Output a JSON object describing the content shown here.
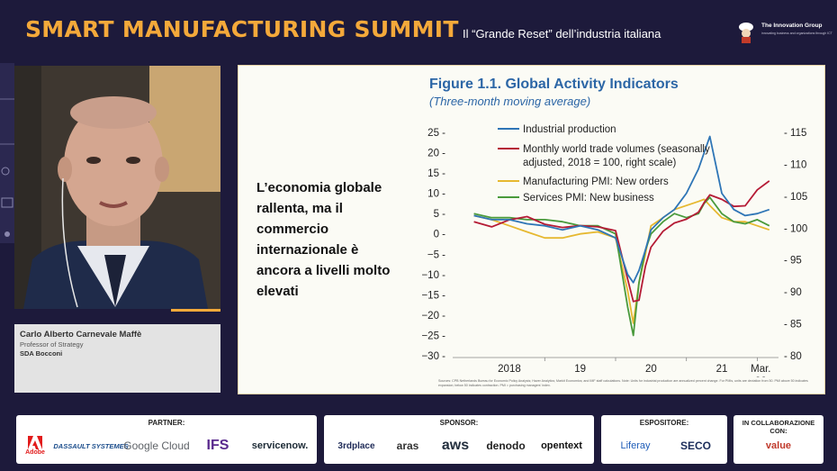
{
  "header": {
    "title": "SMART MANUFACTURING SUMMIT",
    "subtitle": "Il “Grande Reset” dell’industria italiana",
    "org_name": "The Innovation Group",
    "org_tagline": "innovating business and organizations through ICT"
  },
  "speaker": {
    "name": "Carlo Alberto Carnevale Maffè",
    "role": "Professor of Strategy",
    "org": "SDA Bocconi"
  },
  "slide": {
    "text": "L’economia globale rallenta, ma il commercio internazionale è ancora a livelli molto elevati",
    "figure_title": "Figure 1.1.  Global Activity Indicators",
    "figure_subtitle": "(Three-month moving average)",
    "source_note": "Sources: CPB Netherlands Bureau for Economic Policy Analysis; Haver Analytics; Markit Economics; and IMF staff calculations. Note: Units for industrial production are annualized percent change. For PMIs, units are deviation from 50. PMI above 50 indicates expansion; below 50 indicates contraction. PMI = purchasing managers' index."
  },
  "chart_data": {
    "type": "line",
    "title": "Figure 1.1.  Global Activity Indicators",
    "subtitle": "(Three-month moving average)",
    "xlabel": "",
    "ylabel": "",
    "x_ticks": [
      "2018",
      "19",
      "20",
      "21",
      "Mar. 22"
    ],
    "x": [
      2018.0,
      2018.25,
      2018.5,
      2018.75,
      2019.0,
      2019.25,
      2019.5,
      2019.75,
      2020.0,
      2020.17,
      2020.25,
      2020.33,
      2020.42,
      2020.5,
      2020.67,
      2020.83,
      2021.0,
      2021.17,
      2021.25,
      2021.33,
      2021.5,
      2021.67,
      2021.83,
      2022.0,
      2022.17
    ],
    "xlim": [
      2017.7,
      2022.3
    ],
    "y_left_ticks": [
      "25",
      "20",
      "15",
      "10",
      "5",
      "0",
      "−5",
      "−10",
      "−15",
      "−20",
      "−25",
      "−30"
    ],
    "ylim_left": [
      -30,
      25
    ],
    "y_right_ticks": [
      "115",
      "110",
      "105",
      "100",
      "95",
      "90",
      "85",
      "80"
    ],
    "ylim_right": [
      80,
      115
    ],
    "grid": false,
    "legend_position": "top",
    "colors": {
      "industrial": "#2e75b6",
      "trade": "#b51b35",
      "manufacturing": "#e6b830",
      "services": "#4a9a3c"
    },
    "series": [
      {
        "name": "Industrial production",
        "axis": "left",
        "values": [
          4.5,
          3.5,
          3.5,
          2.5,
          2,
          1,
          2,
          1,
          -1,
          -10,
          -12,
          -9,
          -4,
          1,
          4,
          6,
          10,
          16,
          20,
          24,
          10,
          6,
          4.5,
          5,
          6
        ]
      },
      {
        "name": "Monthly world trade volumes (seasonally adjusted, 2018 = 100, right scale)",
        "axis": "right",
        "values": [
          101,
          100.2,
          101.3,
          101.8,
          100.6,
          100.1,
          100.4,
          100.2,
          99.6,
          92,
          88.5,
          88.7,
          94,
          97,
          99.5,
          100.8,
          101.4,
          102.5,
          104,
          105.2,
          104.5,
          103.4,
          103.5,
          106,
          107.4
        ]
      },
      {
        "name": "Manufacturing PMI: New orders",
        "axis": "left",
        "values": [
          4.5,
          3.5,
          2,
          0.5,
          -1,
          -1,
          0,
          0.5,
          -1,
          -14,
          -22,
          -12,
          -5,
          2,
          4,
          6,
          7,
          8,
          8.5,
          7,
          4,
          3,
          3,
          2,
          1
        ]
      },
      {
        "name": "Services PMI: New business",
        "axis": "left",
        "values": [
          5,
          4,
          4,
          3.5,
          3.5,
          3,
          2,
          2,
          0,
          -18,
          -25,
          -12,
          -4,
          0,
          3,
          5,
          4,
          5,
          7.5,
          9,
          5,
          3,
          2.5,
          3.5,
          2
        ]
      }
    ]
  },
  "footer": {
    "partner_label": "PARTNER:",
    "sponsor_label": "SPONSOR:",
    "exhibitor_label": "ESPOSITORE:",
    "collab_label": "IN COLLABORAZIONE CON:",
    "partners": [
      "Adobe",
      "DASSAULT SYSTEMES",
      "Google Cloud",
      "IFS",
      "servicenow."
    ],
    "sponsors": [
      "3rdplace",
      "aras",
      "aws",
      "denodo",
      "opentext"
    ],
    "exhibitors": [
      "Liferay",
      "SECO"
    ],
    "collaborators": [
      "value"
    ]
  }
}
